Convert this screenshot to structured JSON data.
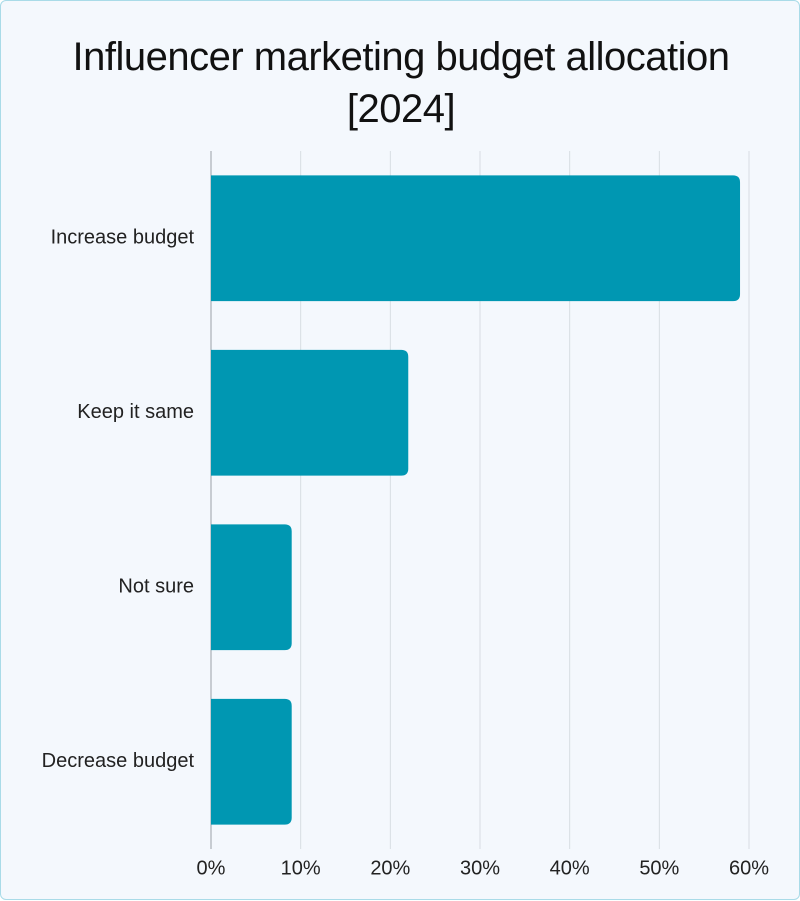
{
  "chart_data": {
    "type": "bar",
    "orientation": "horizontal",
    "title": "Influencer marketing budget allocation [2024]",
    "categories": [
      "Increase budget",
      "Keep it same",
      "Not sure",
      "Decrease budget"
    ],
    "values": [
      59,
      22,
      9,
      9
    ],
    "color": "#0097b2",
    "xlim": [
      0,
      60
    ],
    "xticks": [
      {
        "value": 0,
        "label": "0%"
      },
      {
        "value": 10,
        "label": "10%"
      },
      {
        "value": 20,
        "label": "20%"
      },
      {
        "value": 30,
        "label": "30%"
      },
      {
        "value": 40,
        "label": "40%"
      },
      {
        "value": 50,
        "label": "50%"
      },
      {
        "value": 60,
        "label": "60%"
      }
    ],
    "grid": true
  }
}
